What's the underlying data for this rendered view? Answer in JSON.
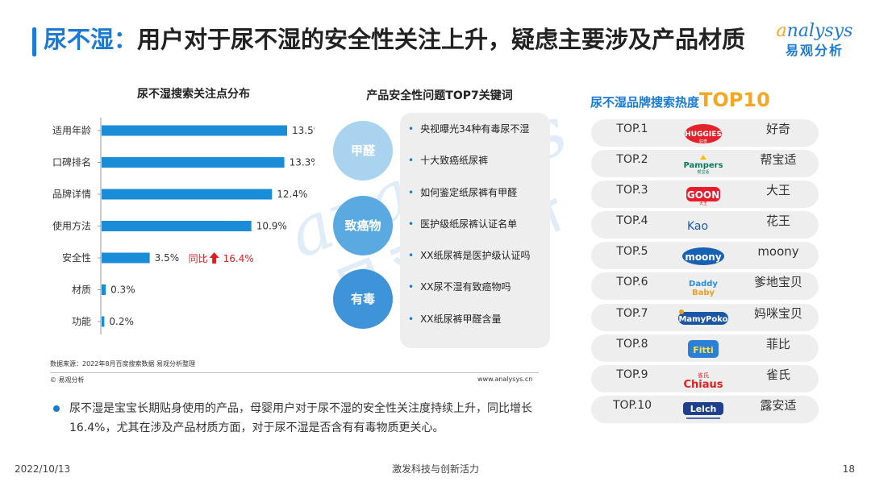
{
  "header": {
    "title_highlight": "尿不湿：",
    "title_rest": "用户对于尿不湿的安全性关注上升，疑虑主要涉及产品材质",
    "logo_en_first": "a",
    "logo_en_rest": "nalysys",
    "logo_cn": "易观分析"
  },
  "chart_data": {
    "type": "bar",
    "orientation": "horizontal",
    "title": "尿不湿搜索关注点分布",
    "categories": [
      "适用年龄",
      "口碑排名",
      "品牌详情",
      "使用方法",
      "安全性",
      "材质",
      "功能"
    ],
    "values": [
      13.5,
      13.3,
      12.4,
      10.9,
      3.5,
      0.3,
      0.2
    ],
    "value_labels": [
      "13.5%",
      "13.3%",
      "12.4%",
      "10.9%",
      "3.5%",
      "0.3%",
      "0.2%"
    ],
    "bar_color": "#1a8cd8",
    "annotation": {
      "category": "安全性",
      "label": "同比",
      "value": "16.4%",
      "arrow": "up",
      "color": "#e02020"
    }
  },
  "footer_notes": {
    "source": "数据来源：2022年8月百度搜索数据 易观分析整理",
    "copyright": "© 易观分析",
    "site": "www.analysys.cn"
  },
  "keywords": {
    "title": "产品安全性问题TOP7关键词",
    "categories": [
      "甲醛",
      "致癌物",
      "有毒"
    ],
    "items": [
      "央视曝光34种有毒尿不湿",
      "十大致癌纸尿裤",
      "如何鉴定纸尿裤有甲醛",
      "医护级纸尿裤认证名单",
      "XX纸尿裤是医护级认证吗",
      "XX尿不湿有致癌物吗",
      "XX纸尿裤甲醛含量"
    ]
  },
  "brands": {
    "title_cn": "尿不湿品牌搜索热度",
    "title_top": "TOP10",
    "items": [
      {
        "rank": "TOP.1",
        "name": "好奇",
        "logo_icon": "huggies-logo-icon"
      },
      {
        "rank": "TOP.2",
        "name": "帮宝适",
        "logo_icon": "pampers-logo-icon"
      },
      {
        "rank": "TOP.3",
        "name": "大王",
        "logo_icon": "goon-logo-icon"
      },
      {
        "rank": "TOP.4",
        "name": "花王",
        "logo_icon": "kao-logo-icon"
      },
      {
        "rank": "TOP.5",
        "name": "moony",
        "logo_icon": "moony-logo-icon"
      },
      {
        "rank": "TOP.6",
        "name": "爹地宝贝",
        "logo_icon": "daddy-baby-logo-icon"
      },
      {
        "rank": "TOP.7",
        "name": "妈咪宝贝",
        "logo_icon": "mamypoko-logo-icon"
      },
      {
        "rank": "TOP.8",
        "name": "菲比",
        "logo_icon": "fitti-logo-icon"
      },
      {
        "rank": "TOP.9",
        "name": "雀氏",
        "logo_icon": "chiaus-logo-icon"
      },
      {
        "rank": "TOP.10",
        "name": "露安适",
        "logo_icon": "lelch-logo-icon"
      }
    ]
  },
  "summary": "尿不湿是宝宝长期贴身使用的产品，母婴用户对于尿不湿的安全性关注度持续上升，同比增长16.4%，尤其在涉及产品材质方面，对于尿不湿是否含有有毒物质更关心。",
  "page_footer": {
    "date": "2022/10/13",
    "slogan": "激发科技与创新活力",
    "page_number": "18"
  },
  "watermark": {
    "en": "analysys",
    "cn": "易观分析"
  },
  "colors": {
    "accent_blue": "#1a7ad4",
    "accent_orange": "#f5a623",
    "up_red": "#e02020"
  }
}
